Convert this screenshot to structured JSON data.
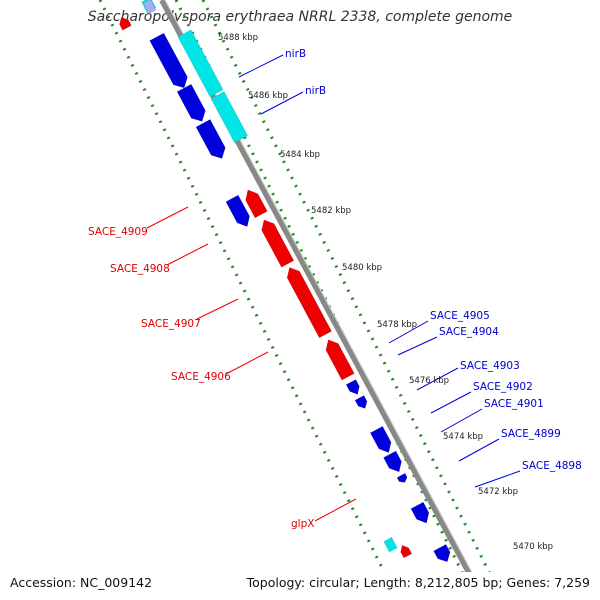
{
  "title": "Saccharopolyspora erythraea NRRL 2338, complete genome",
  "footer": {
    "accession": "Accession: NC_009142",
    "summary": "Topology: circular; Length: 8,212,805 bp; Genes: 7,259"
  },
  "colors": {
    "forward": "#0000dd",
    "reverse": "#ee0000",
    "rna": "#00e5e5",
    "backbone": "#888888",
    "tick": "#1a8c1a"
  },
  "kbp_labels": [
    "5488 kbp",
    "5486 kbp",
    "5484 kbp",
    "5482 kbp",
    "5480 kbp",
    "5478 kbp",
    "5476 kbp",
    "5474 kbp",
    "5472 kbp",
    "5470 kbp"
  ],
  "gene_labels": {
    "forward": [
      "nirB",
      "nirB",
      "SACE_4905",
      "SACE_4904",
      "SACE_4903",
      "SACE_4902",
      "SACE_4901",
      "SACE_4899",
      "SACE_4898"
    ],
    "reverse": [
      "SACE_4909",
      "SACE_4908",
      "SACE_4907",
      "SACE_4906",
      "glpX"
    ]
  }
}
